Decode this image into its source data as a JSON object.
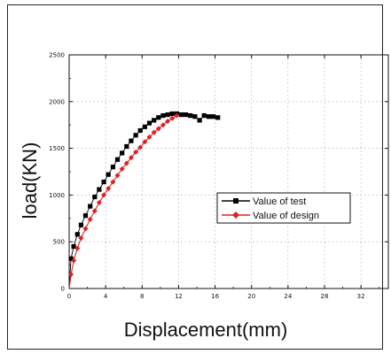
{
  "chart_data": {
    "type": "scatter",
    "title": "",
    "xlabel": "Displacement(mm)",
    "ylabel": "load(KN)",
    "xlim": [
      0,
      35
    ],
    "ylim": [
      0,
      2500
    ],
    "xticks": [
      0,
      4,
      8,
      12,
      16,
      20,
      24,
      28,
      32
    ],
    "yticks": [
      0,
      500,
      1000,
      1500,
      2000,
      2500
    ],
    "grid": true,
    "legend_position": "right-middle",
    "series": [
      {
        "name": "Value of test",
        "color": "#000000",
        "marker": "square",
        "x": [
          0.2,
          0.5,
          0.9,
          1.3,
          1.8,
          2.3,
          2.8,
          3.3,
          3.8,
          4.3,
          4.8,
          5.3,
          5.8,
          6.3,
          6.8,
          7.3,
          7.8,
          8.3,
          8.8,
          9.3,
          9.8,
          10.3,
          10.8,
          11.3,
          11.8,
          12.3,
          12.8,
          13.3,
          13.8,
          14.3,
          14.8,
          15.3,
          15.8,
          16.3
        ],
        "y": [
          320,
          450,
          580,
          680,
          780,
          880,
          980,
          1060,
          1140,
          1220,
          1300,
          1380,
          1450,
          1520,
          1580,
          1640,
          1690,
          1730,
          1770,
          1800,
          1830,
          1850,
          1860,
          1870,
          1870,
          1860,
          1860,
          1850,
          1840,
          1800,
          1850,
          1840,
          1840,
          1830
        ]
      },
      {
        "name": "Value of design",
        "color": "#e02020",
        "marker": "diamond",
        "x": [
          0.2,
          0.5,
          0.9,
          1.3,
          1.8,
          2.3,
          2.8,
          3.3,
          3.8,
          4.3,
          4.8,
          5.3,
          5.8,
          6.3,
          6.8,
          7.3,
          7.8,
          8.3,
          8.8,
          9.3,
          9.8,
          10.3,
          10.8,
          11.3,
          11.8
        ],
        "y": [
          150,
          300,
          430,
          540,
          640,
          740,
          830,
          920,
          1000,
          1070,
          1140,
          1210,
          1280,
          1340,
          1400,
          1460,
          1510,
          1570,
          1620,
          1670,
          1710,
          1750,
          1790,
          1820,
          1850
        ]
      }
    ]
  }
}
